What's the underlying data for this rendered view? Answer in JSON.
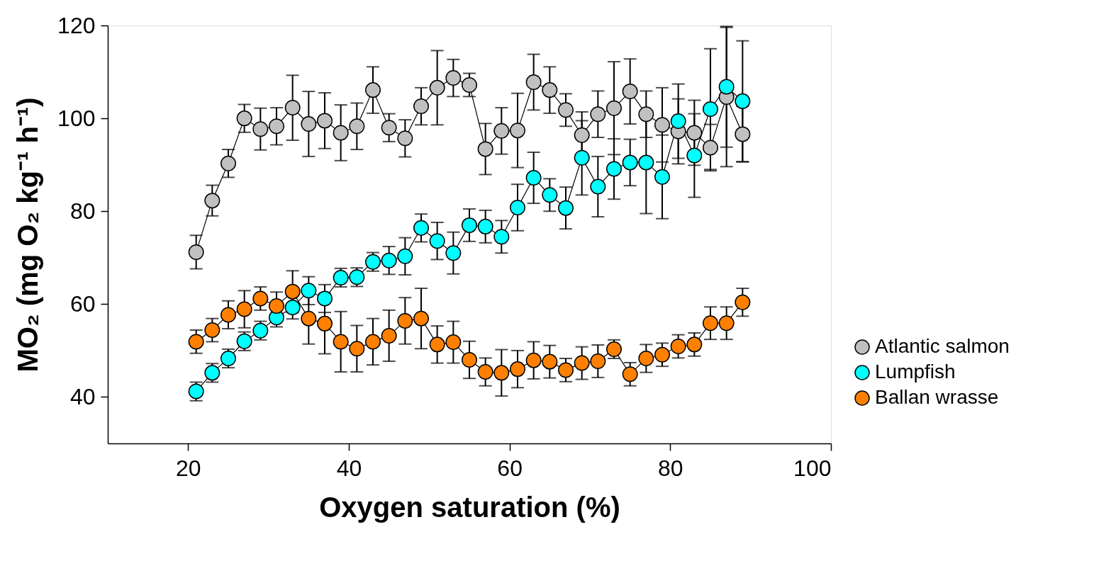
{
  "chart_data": {
    "type": "line",
    "xlabel": "Oxygen saturation (%)",
    "ylabel": "MO₂ (mg O₂ kg⁻¹ h⁻¹)",
    "x": [
      21,
      23,
      25,
      27,
      29,
      31,
      33,
      35,
      37,
      39,
      41,
      43,
      45,
      47,
      49,
      51,
      53,
      55,
      57,
      59,
      61,
      63,
      65,
      67,
      69,
      71,
      73,
      75,
      77,
      79,
      81,
      83,
      85,
      87,
      89
    ],
    "xlim": [
      10,
      100
    ],
    "xticks": [
      20,
      40,
      60,
      80,
      100
    ],
    "ylim": [
      30,
      120
    ],
    "yticks": [
      40,
      60,
      80,
      100,
      120
    ],
    "grid": false,
    "legend": "bottom right",
    "marker": "circle",
    "line_style": "solid",
    "series": [
      {
        "name": "Atlantic salmon",
        "color": "#c0c0c0",
        "values": [
          71.2,
          82.3,
          90.3,
          100.0,
          97.7,
          98.3,
          102.3,
          98.8,
          99.5,
          96.9,
          98.3,
          106.1,
          98.0,
          95.7,
          102.6,
          106.6,
          108.7,
          107.2,
          93.4,
          97.3,
          97.4,
          107.8,
          106.1,
          101.8,
          96.4,
          100.9,
          102.2,
          105.8,
          100.9,
          98.6,
          97.2,
          96.9,
          93.7,
          104.6,
          96.6
        ],
        "errors": [
          3.6,
          3.3,
          3,
          3,
          4.5,
          4,
          7,
          7,
          6,
          6,
          5,
          5,
          3,
          4,
          4,
          8,
          4,
          2.5,
          5.5,
          5,
          8,
          6,
          5,
          3.5,
          5,
          5,
          10,
          7,
          5,
          8,
          7,
          7,
          5,
          15,
          6
        ]
      },
      {
        "name": "Lumpfish",
        "color": "#00ffff",
        "values": [
          41.2,
          45.2,
          48.3,
          52.0,
          54.3,
          57.1,
          59.3,
          62.9,
          61.2,
          65.7,
          65.8,
          69.1,
          69.4,
          70.3,
          76.4,
          73.6,
          71.0,
          77.0,
          76.7,
          74.5,
          80.8,
          87.2,
          83.5,
          80.7,
          91.5,
          85.3,
          89.1,
          90.5,
          90.5,
          87.4,
          99.4,
          92.0,
          102.0,
          106.8,
          103.7
        ],
        "errors": [
          2,
          2,
          2,
          2,
          2,
          2,
          2.5,
          3,
          3,
          2,
          2,
          2,
          3,
          4,
          3,
          4,
          4.5,
          3.5,
          3.5,
          3.5,
          5,
          5.5,
          3.5,
          4.5,
          8,
          6.5,
          6.5,
          5,
          11,
          9,
          8,
          9,
          13,
          13,
          13
        ]
      },
      {
        "name": "Ballan wrasse",
        "color": "#ff8000",
        "values": [
          51.9,
          54.4,
          57.7,
          58.9,
          61.2,
          59.6,
          62.7,
          56.9,
          55.8,
          51.9,
          50.4,
          51.9,
          53.2,
          56.4,
          56.9,
          51.3,
          51.8,
          48.0,
          45.4,
          45.2,
          46.0,
          47.9,
          47.6,
          45.8,
          47.3,
          47.7,
          50.3,
          44.9,
          48.3,
          49.1,
          50.9,
          51.3,
          55.9,
          55.9,
          60.4
        ],
        "errors": [
          2.5,
          2.5,
          3,
          4,
          2.5,
          3,
          4.5,
          5.5,
          6.5,
          6.5,
          5,
          5,
          5.5,
          5,
          6.5,
          4,
          4.5,
          4,
          3,
          5,
          4,
          4,
          3.5,
          2.5,
          3.5,
          3.5,
          2,
          2.5,
          3,
          2.5,
          2.5,
          2.5,
          3.5,
          3.5,
          3
        ]
      }
    ]
  }
}
